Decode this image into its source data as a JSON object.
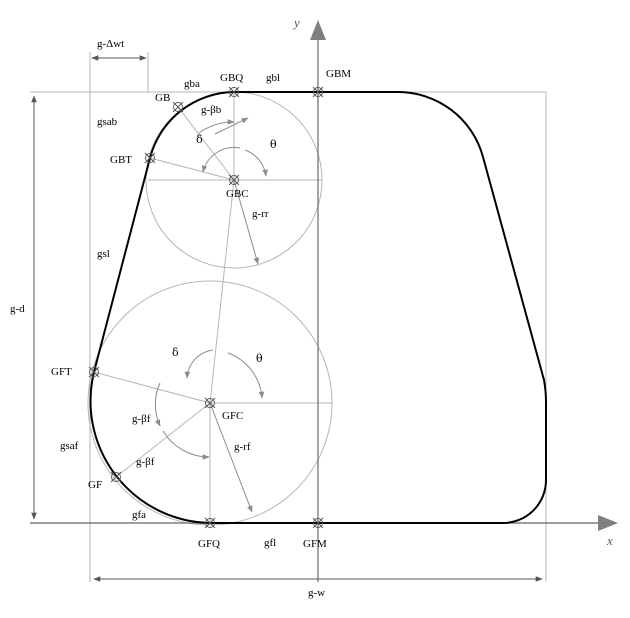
{
  "colors": {
    "outline": "#000000",
    "construction": "#a6a6a6",
    "axis": "#7f7f7f",
    "arrow": "#8c8c8c",
    "text": "#000000"
  },
  "axes": {
    "x_label": "x",
    "y_label": "y"
  },
  "dimensions": {
    "wall_thickness": "g-Δwt",
    "depth": "g-d",
    "width": "g-w"
  },
  "points": {
    "bottom_fillet_quadrant": "GBQ",
    "bottom_mid": "GBM",
    "bottom_tangent": "GBT",
    "bottom_center": "GBC",
    "bottom_point": "GB",
    "flange_tangent": "GFT",
    "flange_center": "GFC",
    "flange_point": "GF",
    "flange_quadrant": "GFQ",
    "flange_mid": "GFM"
  },
  "segments": {
    "bottom_arc": "gba",
    "bottom_line": "gbl",
    "side_arc_bottom": "gsab",
    "side_line": "gsl",
    "side_arc_flange": "gsaf",
    "flange_arc": "gfa",
    "flange_line": "gfl"
  },
  "parameters": {
    "bottom_beta": "g-βb",
    "bottom_radius": "g-rr",
    "flange_beta_upper": "g-βf",
    "flange_beta_lower": "g-βf",
    "flange_radius": "g-rf"
  },
  "angles": {
    "delta_bottom": "δ",
    "theta_bottom": "θ",
    "delta_flange": "δ",
    "theta_flange": "θ"
  }
}
